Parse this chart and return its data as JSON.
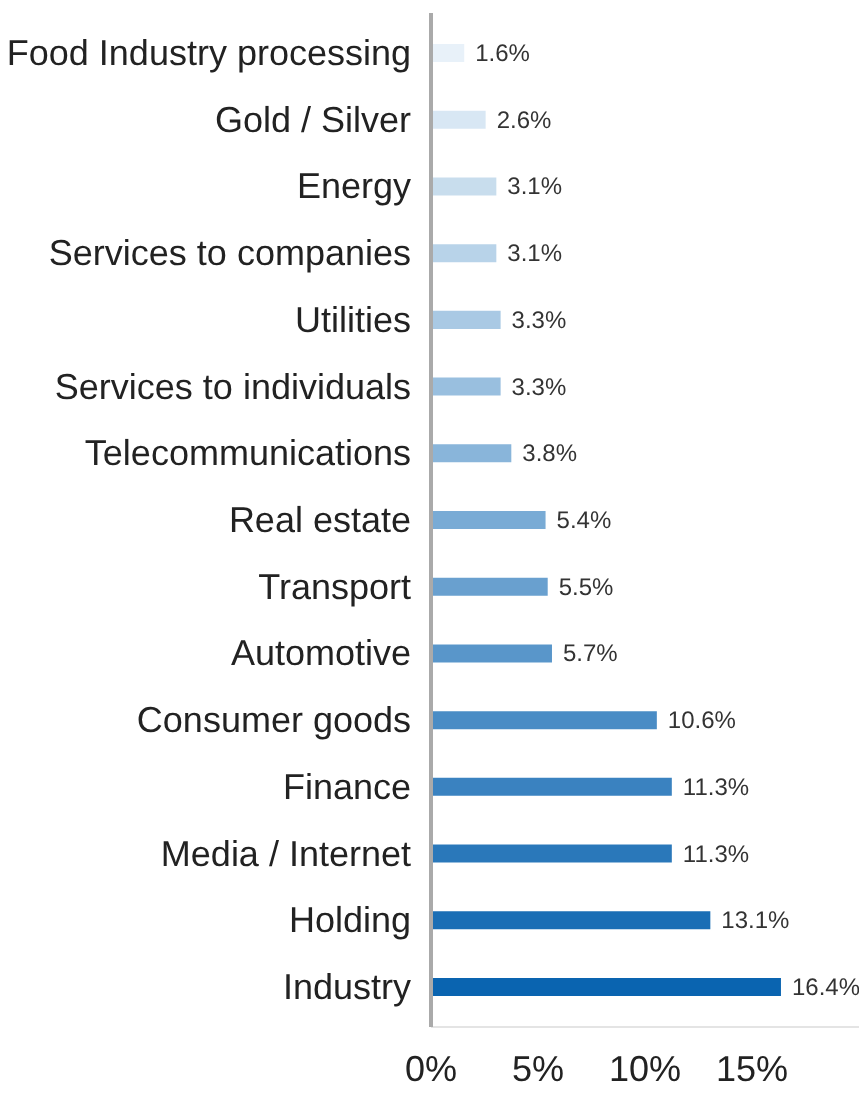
{
  "chart_data": {
    "type": "bar",
    "orientation": "horizontal",
    "categories": [
      "Food Industry processing",
      "Gold / Silver",
      "Energy",
      "Services to companies",
      "Utilities",
      "Services to individuals",
      "Telecommunications",
      "Real estate",
      "Transport",
      "Automotive",
      "Consumer goods",
      "Finance",
      "Media / Internet",
      "Holding",
      "Industry"
    ],
    "values": [
      1.6,
      2.6,
      3.1,
      3.1,
      3.3,
      3.3,
      3.8,
      5.4,
      5.5,
      5.7,
      10.6,
      11.3,
      11.3,
      13.1,
      16.4
    ],
    "value_labels": [
      "1.6%",
      "2.6%",
      "3.1%",
      "3.1%",
      "3.3%",
      "3.3%",
      "3.8%",
      "5.4%",
      "5.5%",
      "5.7%",
      "10.6%",
      "11.3%",
      "11.3%",
      "13.1%",
      "16.4%"
    ],
    "colors": [
      "#e8f1f9",
      "#d8e7f4",
      "#c8dded",
      "#b8d3e9",
      "#a9c9e4",
      "#99bfdf",
      "#89b5da",
      "#79abd5",
      "#69a0cf",
      "#5996ca",
      "#498cc5",
      "#3a82c0",
      "#2a78ba",
      "#1a6eb5",
      "#0a64b0"
    ],
    "xlim": [
      0,
      20
    ],
    "xticks": [
      {
        "value": 0,
        "label": "0%"
      },
      {
        "value": 5,
        "label": "5%"
      },
      {
        "value": 10,
        "label": "10%"
      },
      {
        "value": 15,
        "label": "15%"
      }
    ]
  }
}
